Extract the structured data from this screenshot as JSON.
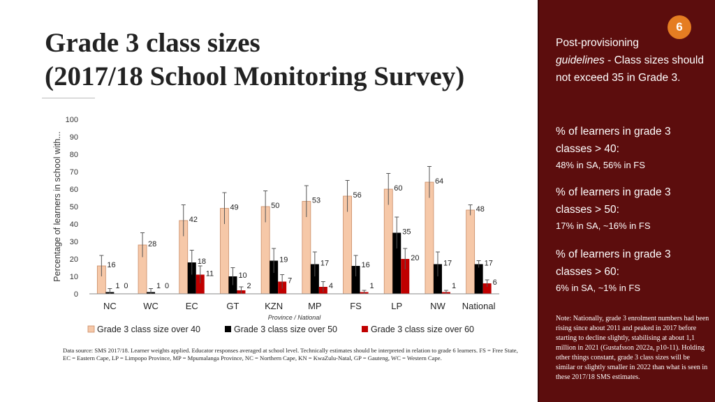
{
  "slide": {
    "title_line1": "Grade 3 class sizes",
    "title_line2": "(2017/18 School Monitoring Survey)",
    "slide_number": "6",
    "source_note": "Data source: SMS 2017/18. Learner weights applied. Educator responses averaged at school level. Technically estimates should be interpreted in relation to grade 6 learners. FS = Free State, EC = Eastern Cape, LP = Limpopo Province, MP = Mpumalanga Province, NC = Northern Cape, KN = KwaZulu-Natal, GP = Gauteng, WC = Western Cape."
  },
  "panel": {
    "guideline_prefix": "Post-provisioning",
    "guideline_italic": "guidelines",
    "guideline_rest": " - Class sizes should not exceed 35 in Grade 3.",
    "stats": [
      {
        "label": "% of learners in grade 3 classes > 40:",
        "value": "48% in SA, 56% in FS"
      },
      {
        "label": "% of learners in grade 3 classes > 50:",
        "value": "17% in SA, ~16% in FS"
      },
      {
        "label": "% of learners in grade 3 classes > 60:",
        "value": "6% in SA, ~1% in FS"
      }
    ],
    "note": "Note: Nationally, grade 3 enrolment numbers had been rising since about 2011 and peaked in 2017 before starting to decline slightly, stabilising at about 1,1 million in 2021 (Gustafsson 2022a, p10-11). Holding other things constant, grade 3 class sizes will be similar or slightly smaller in 2022 than what is seen in these 2017/18 SMS estimates."
  },
  "chart_data": {
    "type": "bar",
    "xlabel": "Province / National",
    "ylabel": "Percentage of learners in school with...",
    "ylim": [
      0,
      100
    ],
    "yticks": [
      0,
      10,
      20,
      30,
      40,
      50,
      60,
      70,
      80,
      90,
      100
    ],
    "categories": [
      "NC",
      "WC",
      "EC",
      "GT",
      "KZN",
      "MP",
      "FS",
      "LP",
      "NW",
      "National"
    ],
    "legend_position": "bottom",
    "error_bars": true,
    "grid": false,
    "series": [
      {
        "name": "Grade 3 class size over 40",
        "color": "#f6c8a8",
        "values": [
          16,
          28,
          42,
          49,
          50,
          53,
          56,
          60,
          64,
          48
        ],
        "labels": [
          "16",
          "28",
          "42",
          "49",
          "50",
          "53",
          "56",
          "60",
          "64",
          "48"
        ],
        "errors": [
          6,
          7,
          9,
          9,
          9,
          9,
          9,
          9,
          9,
          3
        ]
      },
      {
        "name": "Grade 3 class size over 50",
        "color": "#000000",
        "values": [
          1,
          1,
          18,
          10,
          19,
          17,
          16,
          35,
          17,
          17
        ],
        "labels": [
          "1",
          "1",
          "18",
          "10",
          "19",
          "17",
          "16",
          "35",
          "17",
          "17"
        ],
        "errors": [
          2,
          2,
          7,
          5,
          7,
          7,
          6,
          9,
          7,
          2
        ]
      },
      {
        "name": "Grade 3 class size over 60",
        "color": "#c00000",
        "values": [
          0,
          0,
          11,
          2,
          7,
          4,
          1,
          20,
          1,
          6
        ],
        "labels": [
          "0",
          "0",
          "11",
          "2",
          "7",
          "4",
          "1",
          "20",
          "1",
          "6"
        ],
        "errors": [
          0,
          0,
          5,
          2,
          4,
          3,
          1,
          6,
          1,
          2
        ]
      }
    ]
  }
}
